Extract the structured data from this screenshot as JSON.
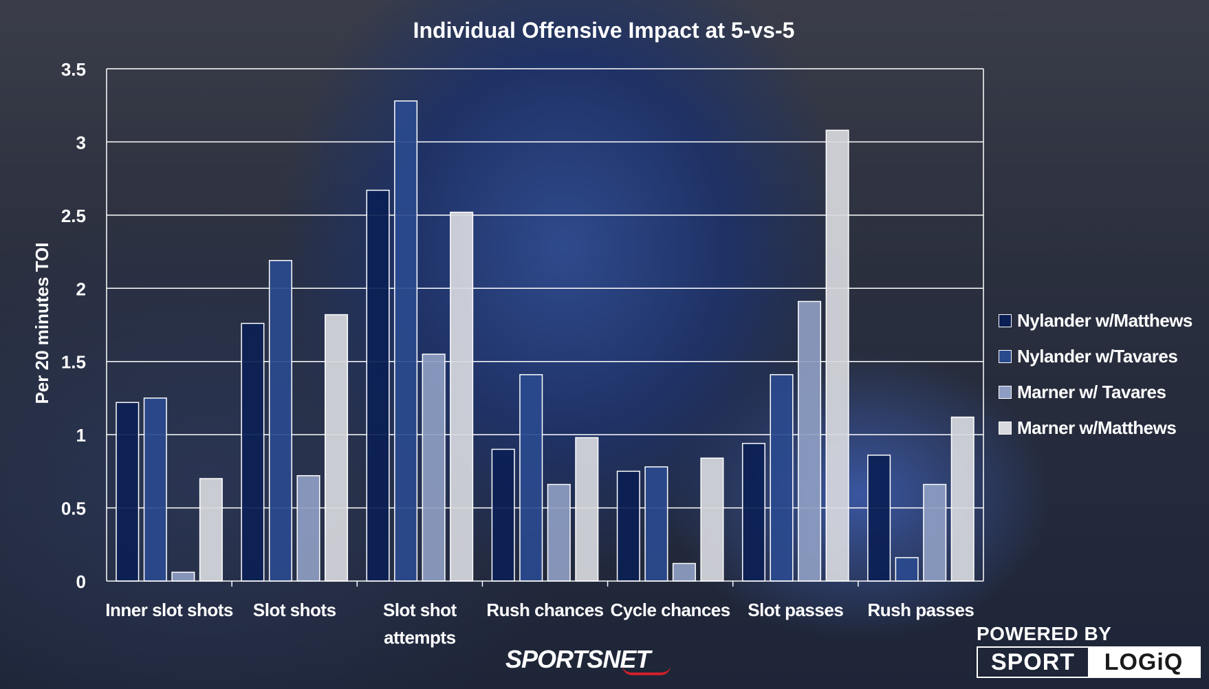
{
  "branding": {
    "sportsnet": "SPORTSNET",
    "powered_by": "POWERED BY",
    "logiq_left": "SPORT",
    "logiq_right": "LOGiQ"
  },
  "chart_data": {
    "type": "bar",
    "title": "Individual Offensive Impact at 5-vs-5",
    "xlabel": "",
    "ylabel": "Per 20 minutes TOI",
    "ylim": [
      0,
      3.5
    ],
    "yticks": [
      0,
      0.5,
      1,
      1.5,
      2,
      2.5,
      3,
      3.5
    ],
    "ytick_labels": [
      "0",
      "0.5",
      "1",
      "1.5",
      "2",
      "2.5",
      "3",
      "3.5"
    ],
    "grid": true,
    "legend_position": "right",
    "categories": [
      [
        "Inner slot shots"
      ],
      [
        "Slot shots"
      ],
      [
        "Slot shot",
        "attempts"
      ],
      [
        "Rush chances"
      ],
      [
        "Cycle chances"
      ],
      [
        "Slot passes"
      ],
      [
        "Rush passes"
      ]
    ],
    "series": [
      {
        "name": "Nylander w/Matthews",
        "color": "#0b1f55",
        "values": [
          1.22,
          1.76,
          2.67,
          0.9,
          0.75,
          0.94,
          0.86
        ]
      },
      {
        "name": "Nylander w/Tavares",
        "color": "#2a4a8e",
        "values": [
          1.25,
          2.19,
          3.28,
          1.41,
          0.78,
          1.41,
          0.16
        ]
      },
      {
        "name": "Marner w/ Tavares",
        "color": "#8e9dc2",
        "values": [
          0.06,
          0.72,
          1.55,
          0.66,
          0.12,
          1.91,
          0.66
        ]
      },
      {
        "name": "Marner w/Matthews",
        "color": "#d8d9de",
        "values": [
          0.7,
          1.82,
          2.52,
          0.98,
          0.84,
          3.08,
          1.12
        ]
      }
    ]
  }
}
